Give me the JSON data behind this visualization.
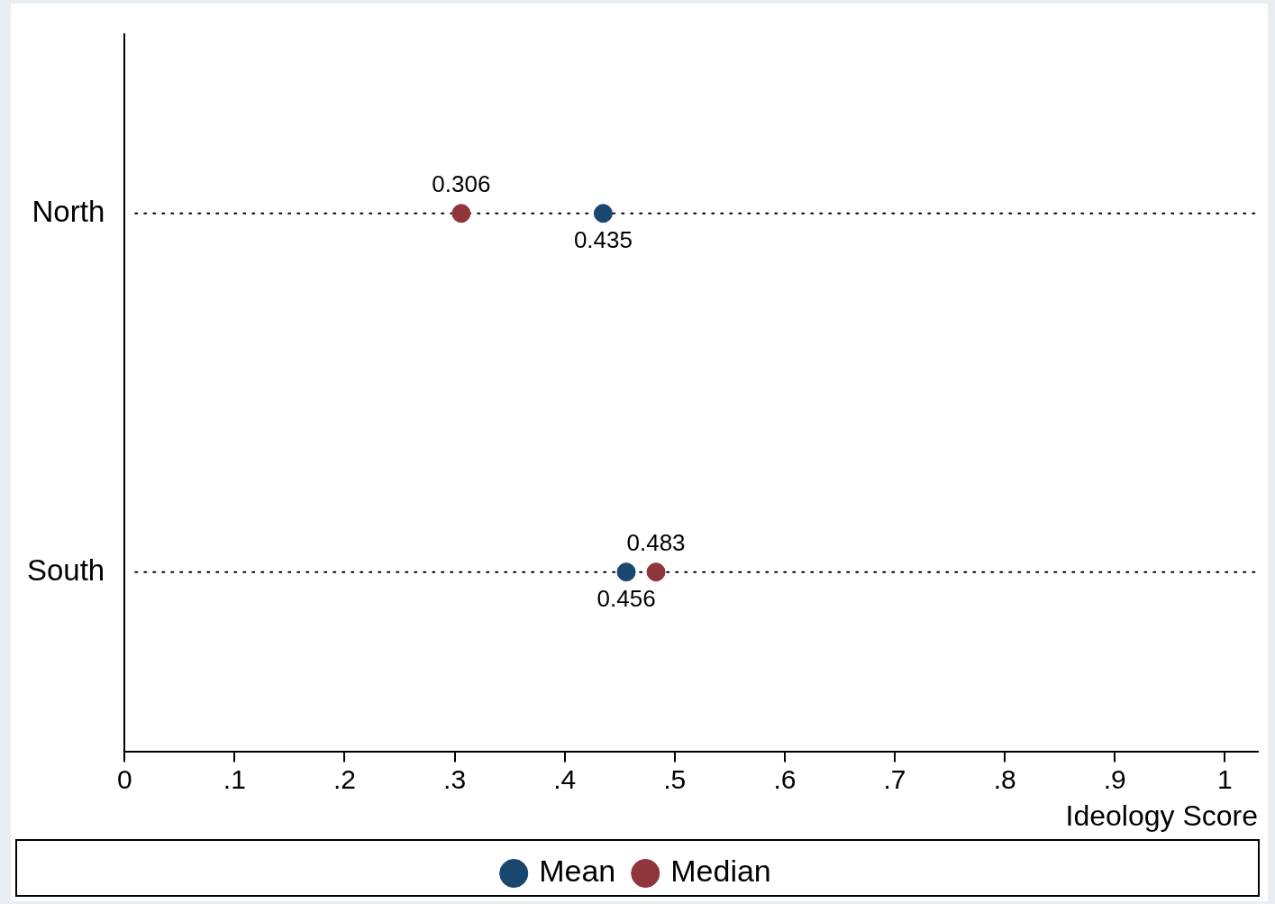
{
  "chart_data": {
    "type": "scatter",
    "orientation": "horizontal",
    "categories": [
      "North",
      "South"
    ],
    "series": [
      {
        "name": "Mean",
        "color": "#1a476f",
        "values": [
          0.435,
          0.456
        ]
      },
      {
        "name": "Median",
        "color": "#90353b",
        "values": [
          0.306,
          0.483
        ]
      }
    ],
    "xlabel": "Ideology Score",
    "xlim": [
      0,
      1.03
    ],
    "xticks": [
      0,
      {
        "value": 0.1,
        "label": ".1"
      },
      {
        "value": 0.2,
        "label": ".2"
      },
      {
        "value": 0.3,
        "label": ".3"
      },
      {
        "value": 0.4,
        "label": ".4"
      },
      {
        "value": 0.5,
        "label": ".5"
      },
      {
        "value": 0.6,
        "label": ".6"
      },
      {
        "value": 0.7,
        "label": ".7"
      },
      {
        "value": 0.8,
        "label": ".8"
      },
      {
        "value": 0.9,
        "label": ".9"
      },
      1
    ],
    "grid": "y",
    "line_style": "dotted",
    "marker": "circle",
    "data_labels": true,
    "legend": "bottom"
  }
}
